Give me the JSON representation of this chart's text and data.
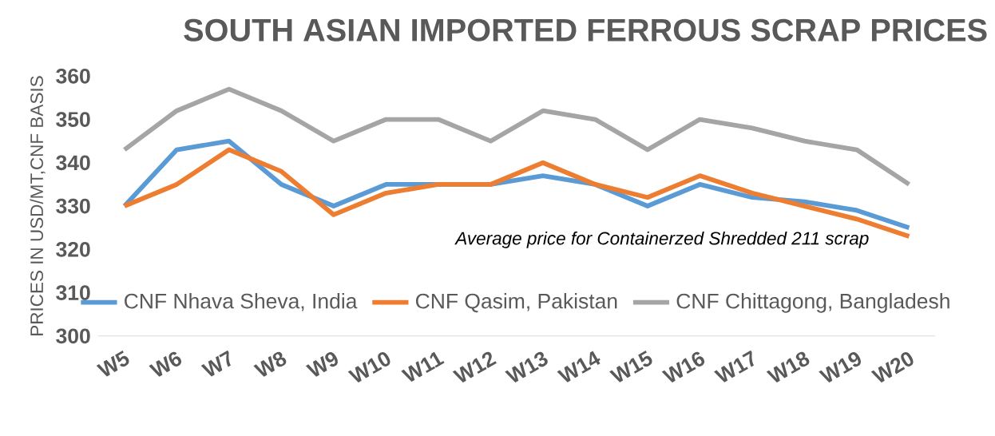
{
  "chart_data": {
    "type": "line",
    "title": "SOUTH ASIAN IMPORTED FERROUS SCRAP PRICES",
    "ylabel": "PRICES IN USD/MT,CNF BASIS",
    "categories": [
      "W5",
      "W6",
      "W7",
      "W8",
      "W9",
      "W10",
      "W11",
      "W12",
      "W13",
      "W14",
      "W15",
      "W16",
      "W17",
      "W18",
      "W19",
      "W20"
    ],
    "series": [
      {
        "name": "CNF Nhava Sheva, India",
        "color": "#5b9bd5",
        "values": [
          330,
          343,
          345,
          335,
          330,
          335,
          335,
          335,
          337,
          335,
          330,
          335,
          332,
          331,
          329,
          325
        ]
      },
      {
        "name": "CNF Qasim, Pakistan",
        "color": "#ed7d31",
        "values": [
          330,
          335,
          343,
          338,
          328,
          333,
          335,
          335,
          340,
          335,
          332,
          337,
          333,
          330,
          327,
          323
        ]
      },
      {
        "name": "CNF Chittagong, Bangladesh",
        "color": "#a5a5a5",
        "values": [
          343,
          352,
          357,
          352,
          345,
          350,
          350,
          345,
          352,
          350,
          343,
          350,
          348,
          345,
          343,
          335
        ]
      }
    ],
    "ylim": [
      300,
      360
    ],
    "yticks": [
      300,
      310,
      320,
      330,
      340,
      350,
      360
    ],
    "annotations": [
      "Average price for Containerzed Shredded 211 scrap"
    ],
    "legend": "bottom",
    "grid": false,
    "marker": "none",
    "line_style": "solid"
  }
}
